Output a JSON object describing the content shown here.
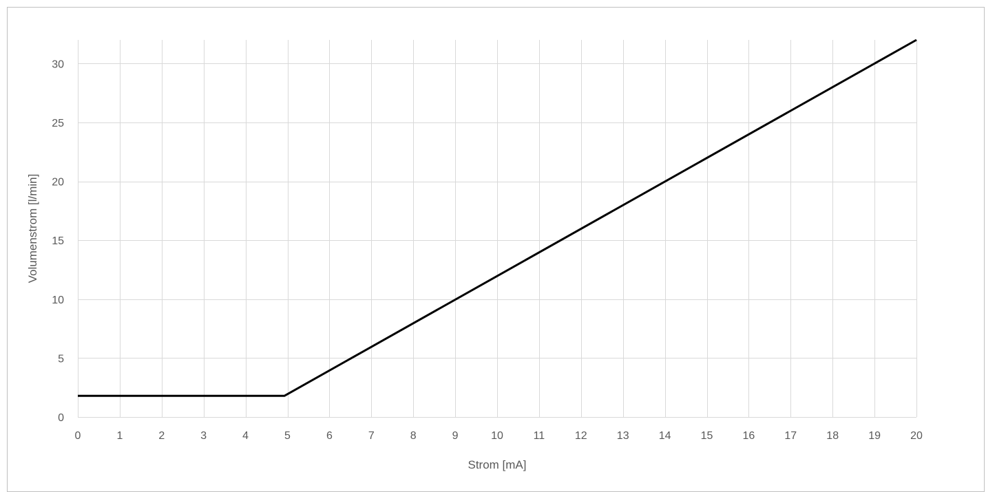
{
  "chart_data": {
    "type": "line",
    "title": "",
    "xlabel": "Strom [mA]",
    "ylabel": "Volumenstrom [l/min]",
    "xlim": [
      0,
      20
    ],
    "ylim": [
      0,
      32
    ],
    "xticks": [
      0,
      1,
      2,
      3,
      4,
      5,
      6,
      7,
      8,
      9,
      10,
      11,
      12,
      13,
      14,
      15,
      16,
      17,
      18,
      19,
      20
    ],
    "yticks": [
      0,
      5,
      10,
      15,
      20,
      25,
      30
    ],
    "grid": true,
    "legend": "none",
    "colors": {
      "line": "#000000",
      "grid": "#d9d9d9",
      "text": "#595959"
    },
    "series": [
      {
        "x": [
          0,
          4.93,
          20
        ],
        "y": [
          1.8,
          1.8,
          32
        ]
      }
    ]
  }
}
